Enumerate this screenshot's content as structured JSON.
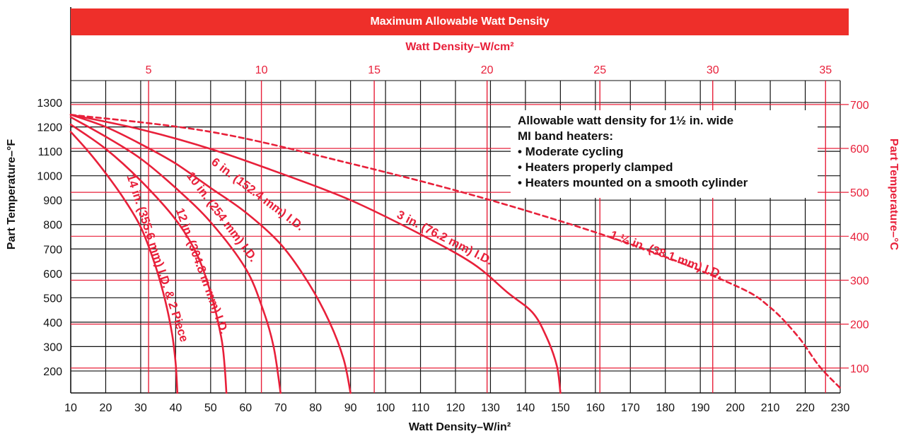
{
  "chart_data": {
    "type": "line",
    "title": "Maximum Allowable Watt Density",
    "xlabel": "Watt Density–W/in²",
    "x2label": "Watt Density–W/cm²",
    "ylabel": "Part Temperature–°F",
    "y2label": "Part Temperature–°C",
    "xlim": [
      10,
      230
    ],
    "ylim": [
      110,
      1390
    ],
    "x_ticks": [
      10,
      20,
      30,
      40,
      50,
      60,
      70,
      80,
      90,
      100,
      110,
      120,
      130,
      140,
      150,
      160,
      170,
      180,
      190,
      200,
      210,
      220,
      230
    ],
    "y_ticks": [
      200,
      300,
      400,
      500,
      600,
      700,
      800,
      900,
      1000,
      1100,
      1200,
      1300
    ],
    "x2_ticks": [
      5,
      10,
      15,
      20,
      25,
      30,
      35
    ],
    "y2_ticks": [
      100,
      200,
      300,
      400,
      500,
      600,
      700
    ],
    "grid": true,
    "legend": {
      "title": "Allowable watt density for 1½ in. wide MI band heaters:",
      "title_lines": [
        "Allowable watt density for 1½ in. wide",
        "MI band heaters:"
      ],
      "bullets": [
        "• Moderate cycling",
        "• Heaters properly clamped",
        "• Heaters mounted on a smooth cylinder"
      ],
      "placement": "top-right"
    },
    "series": [
      {
        "name": "14 in. (355.6 mm) I.D. & 2 Piece",
        "dashed": false,
        "points": [
          [
            10,
            1180
          ],
          [
            15,
            1100
          ],
          [
            20,
            1010
          ],
          [
            25,
            910
          ],
          [
            30,
            790
          ],
          [
            34,
            640
          ],
          [
            37,
            490
          ],
          [
            39,
            350
          ],
          [
            40,
            230
          ],
          [
            40.5,
            110
          ]
        ]
      },
      {
        "name": "12 in. (304.8 m mm) I.D.",
        "dashed": false,
        "points": [
          [
            10,
            1210
          ],
          [
            20,
            1110
          ],
          [
            30,
            980
          ],
          [
            40,
            820
          ],
          [
            46,
            680
          ],
          [
            50,
            520
          ],
          [
            53,
            340
          ],
          [
            54,
            220
          ],
          [
            54.5,
            110
          ]
        ]
      },
      {
        "name": "10 in. (254 mm) I.D.",
        "dashed": false,
        "points": [
          [
            10,
            1240
          ],
          [
            20,
            1160
          ],
          [
            30,
            1070
          ],
          [
            40,
            950
          ],
          [
            50,
            810
          ],
          [
            60,
            620
          ],
          [
            65,
            450
          ],
          [
            68,
            300
          ],
          [
            70,
            110
          ]
        ]
      },
      {
        "name": "6 in. (152.4 mm) I.D.",
        "dashed": false,
        "points": [
          [
            10,
            1250
          ],
          [
            20,
            1200
          ],
          [
            30,
            1130
          ],
          [
            40,
            1050
          ],
          [
            50,
            950
          ],
          [
            60,
            850
          ],
          [
            70,
            720
          ],
          [
            78,
            560
          ],
          [
            84,
            400
          ],
          [
            88,
            250
          ],
          [
            90,
            110
          ]
        ]
      },
      {
        "name": "3 in. (76.2 mm) I.D.",
        "dashed": false,
        "points": [
          [
            10,
            1250
          ],
          [
            30,
            1190
          ],
          [
            50,
            1110
          ],
          [
            70,
            1010
          ],
          [
            90,
            900
          ],
          [
            110,
            760
          ],
          [
            125,
            640
          ],
          [
            135,
            520
          ],
          [
            142,
            440
          ],
          [
            146,
            340
          ],
          [
            149,
            220
          ],
          [
            150,
            110
          ]
        ]
      },
      {
        "name": "1 ½ in. (38.1 mm) I.D.",
        "dashed": true,
        "points": [
          [
            10,
            1250
          ],
          [
            50,
            1180
          ],
          [
            90,
            1050
          ],
          [
            130,
            900
          ],
          [
            170,
            720
          ],
          [
            200,
            550
          ],
          [
            210,
            460
          ],
          [
            218,
            340
          ],
          [
            224,
            220
          ],
          [
            230,
            130
          ]
        ]
      }
    ],
    "curve_labels": [
      {
        "text": "14 in. (355.6 mm) I.D. & 2 Piece",
        "x": 26,
        "y": 1000,
        "angle": 72
      },
      {
        "text": "12 in. (304.8 m mm) I.D.",
        "x": 40,
        "y": 860,
        "angle": 70
      },
      {
        "text": "10 in. (254 mm) I.D.",
        "x": 43,
        "y": 1000,
        "angle": 53
      },
      {
        "text": "6 in. (152.4 mm) I.D.",
        "x": 50,
        "y": 1050,
        "angle": 37
      },
      {
        "text": "3 in. (76.2 mm) I.D.",
        "x": 103,
        "y": 830,
        "angle": 27
      },
      {
        "text": "1 ½ in. (38.1 mm) I.D.",
        "x": 164,
        "y": 745,
        "angle": 20
      }
    ],
    "colors": {
      "curve": "#e8203a",
      "title_bar": "#ee2f2a",
      "grid_black": "#111111",
      "grid_red": "#e8203a"
    }
  }
}
